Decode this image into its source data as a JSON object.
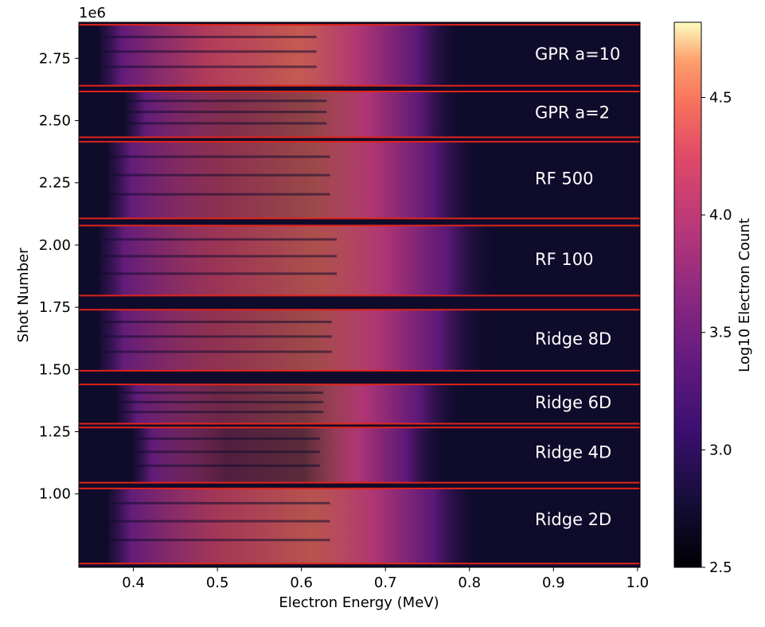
{
  "chart_data": {
    "type": "heatmap",
    "title": "",
    "xlabel": "Electron Energy (MeV)",
    "ylabel": "Shot Number",
    "y_offset_label": "1e6",
    "xlim": [
      0.335,
      1.003
    ],
    "ylim": [
      0.705,
      2.895
    ],
    "xticks": [
      0.4,
      0.5,
      0.6,
      0.7,
      0.8,
      0.9,
      1.0
    ],
    "xtick_labels": [
      "0.4",
      "0.5",
      "0.6",
      "0.7",
      "0.8",
      "0.9",
      "1.0"
    ],
    "yticks": [
      1.0,
      1.25,
      1.5,
      1.75,
      2.0,
      2.25,
      2.5,
      2.75
    ],
    "ytick_labels": [
      "1.00",
      "1.25",
      "1.50",
      "1.75",
      "2.00",
      "2.25",
      "2.50",
      "2.75"
    ],
    "colorbar": {
      "label": "Log10 Electron Count",
      "colormap": "magma",
      "range": [
        2.5,
        4.82
      ],
      "ticks": [
        2.5,
        3.0,
        3.5,
        4.0,
        4.5
      ],
      "tick_labels": [
        "2.5",
        "3.0",
        "3.5",
        "4.0",
        "4.5"
      ]
    },
    "separator_lines_y": [
      2.885,
      2.64,
      2.617,
      2.433,
      2.415,
      2.107,
      2.078,
      1.797,
      1.74,
      1.495,
      1.44,
      1.282,
      1.267,
      1.045,
      1.022,
      0.72
    ],
    "separator_color": "#e0241b",
    "regions": [
      {
        "label": "GPR a=10",
        "label_y": 2.77,
        "y_range": [
          2.64,
          2.885
        ],
        "intensity": 0.78,
        "energy_range": [
          0.36,
          0.79
        ]
      },
      {
        "label": "GPR a=2",
        "label_y": 2.535,
        "y_range": [
          2.433,
          2.617
        ],
        "intensity": 0.55,
        "energy_range": [
          0.39,
          0.79
        ]
      },
      {
        "label": "RF 500",
        "label_y": 2.27,
        "y_range": [
          2.107,
          2.415
        ],
        "intensity": 0.6,
        "energy_range": [
          0.37,
          0.81
        ]
      },
      {
        "label": "RF 100",
        "label_y": 1.945,
        "y_range": [
          1.797,
          2.078
        ],
        "intensity": 0.68,
        "energy_range": [
          0.36,
          0.83
        ]
      },
      {
        "label": "Ridge 8D",
        "label_y": 1.625,
        "y_range": [
          1.495,
          1.74
        ],
        "intensity": 0.62,
        "energy_range": [
          0.36,
          0.82
        ]
      },
      {
        "label": "Ridge 6D",
        "label_y": 1.37,
        "y_range": [
          1.282,
          1.44
        ],
        "intensity": 0.45,
        "energy_range": [
          0.38,
          0.79
        ]
      },
      {
        "label": "Ridge 4D",
        "label_y": 1.17,
        "y_range": [
          1.045,
          1.267
        ],
        "intensity": 0.32,
        "energy_range": [
          0.4,
          0.77
        ]
      },
      {
        "label": "Ridge 2D",
        "label_y": 0.9,
        "y_range": [
          0.72,
          1.022
        ],
        "intensity": 0.72,
        "energy_range": [
          0.37,
          0.81
        ]
      }
    ]
  }
}
